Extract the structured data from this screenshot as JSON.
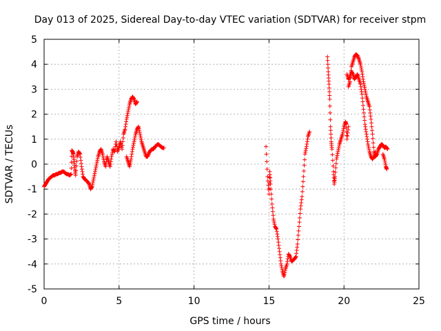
{
  "chart_data": {
    "type": "scatter",
    "title": "Day 013 of 2025, Sidereal Day-to-day VTEC variation (SDTVAR) for receiver stpm",
    "xlabel": "GPS time / hours",
    "ylabel": "SDTVAR / TECUs",
    "xlim": [
      0,
      25
    ],
    "ylim": [
      -5,
      5
    ],
    "xticks": [
      0,
      5,
      10,
      15,
      20,
      25
    ],
    "xtick_labels": [
      "0",
      "5",
      "10",
      "15",
      "20",
      "25"
    ],
    "yticks": [
      -5,
      -4,
      -3,
      -2,
      -1,
      0,
      1,
      2,
      3,
      4,
      5
    ],
    "ytick_labels": [
      "-5",
      "-4",
      "-3",
      "-2",
      "-1",
      "0",
      "1",
      "2",
      "3",
      "4",
      "5"
    ],
    "grid": true,
    "marker": "plus",
    "color": "#ff0000",
    "series": [
      {
        "segments": [
          [
            [
              0.0,
              -0.9
            ],
            [
              0.1,
              -0.8
            ],
            [
              0.2,
              -0.7
            ],
            [
              0.3,
              -0.6
            ],
            [
              0.4,
              -0.55
            ],
            [
              0.5,
              -0.5
            ],
            [
              0.6,
              -0.45
            ],
            [
              0.7,
              -0.45
            ],
            [
              0.8,
              -0.4
            ],
            [
              0.9,
              -0.4
            ],
            [
              1.0,
              -0.35
            ],
            [
              1.1,
              -0.35
            ],
            [
              1.2,
              -0.3
            ],
            [
              1.3,
              -0.3
            ],
            [
              1.4,
              -0.35
            ],
            [
              1.5,
              -0.4
            ],
            [
              1.6,
              -0.4
            ],
            [
              1.7,
              -0.45
            ],
            [
              1.8,
              -0.4
            ],
            [
              1.85,
              0.55
            ],
            [
              1.9,
              0.5
            ],
            [
              1.95,
              0.4
            ],
            [
              2.0,
              0.1
            ],
            [
              2.05,
              -0.2
            ],
            [
              2.1,
              -0.45
            ],
            [
              2.2,
              0.3
            ],
            [
              2.3,
              0.5
            ],
            [
              2.4,
              0.4
            ],
            [
              2.5,
              -0.1
            ],
            [
              2.6,
              -0.5
            ],
            [
              2.7,
              -0.6
            ],
            [
              2.8,
              -0.65
            ],
            [
              2.9,
              -0.7
            ],
            [
              3.0,
              -0.8
            ],
            [
              3.1,
              -1.0
            ],
            [
              3.2,
              -0.9
            ],
            [
              3.3,
              -0.6
            ],
            [
              3.4,
              -0.3
            ],
            [
              3.5,
              0.0
            ],
            [
              3.6,
              0.3
            ],
            [
              3.7,
              0.5
            ],
            [
              3.8,
              0.6
            ],
            [
              3.9,
              0.4
            ],
            [
              4.0,
              0.1
            ],
            [
              4.1,
              -0.1
            ],
            [
              4.2,
              0.3
            ],
            [
              4.3,
              0.1
            ],
            [
              4.4,
              -0.1
            ],
            [
              4.5,
              0.3
            ],
            [
              4.6,
              0.6
            ],
            [
              4.7,
              0.5
            ],
            [
              4.8,
              0.9
            ],
            [
              4.9,
              0.5
            ],
            [
              5.0,
              0.7
            ],
            [
              5.1,
              0.9
            ],
            [
              5.2,
              0.6
            ],
            [
              5.3,
              1.2
            ],
            [
              5.4,
              1.4
            ],
            [
              5.5,
              1.8
            ],
            [
              5.6,
              2.1
            ],
            [
              5.7,
              2.4
            ],
            [
              5.8,
              2.6
            ],
            [
              5.9,
              2.7
            ],
            [
              6.0,
              2.6
            ],
            [
              6.1,
              2.4
            ],
            [
              6.2,
              2.5
            ]
          ],
          [
            [
              5.5,
              0.3
            ],
            [
              5.6,
              0.1
            ],
            [
              5.7,
              -0.1
            ],
            [
              5.8,
              0.2
            ],
            [
              5.9,
              0.6
            ],
            [
              6.0,
              0.9
            ],
            [
              6.1,
              1.2
            ],
            [
              6.2,
              1.4
            ],
            [
              6.3,
              1.5
            ],
            [
              6.4,
              1.2
            ],
            [
              6.5,
              0.9
            ],
            [
              6.6,
              0.7
            ],
            [
              6.7,
              0.5
            ],
            [
              6.8,
              0.3
            ],
            [
              6.9,
              0.3
            ],
            [
              7.0,
              0.45
            ],
            [
              7.1,
              0.55
            ],
            [
              7.2,
              0.6
            ],
            [
              7.3,
              0.6
            ],
            [
              7.4,
              0.7
            ],
            [
              7.5,
              0.75
            ],
            [
              7.6,
              0.8
            ],
            [
              7.7,
              0.75
            ],
            [
              7.8,
              0.7
            ],
            [
              7.9,
              0.65
            ],
            [
              8.0,
              0.65
            ]
          ],
          [
            [
              14.8,
              0.7
            ],
            [
              14.9,
              -0.5
            ],
            [
              15.0,
              -1.2
            ],
            [
              15.05,
              -0.3
            ],
            [
              15.1,
              -0.8
            ],
            [
              15.2,
              -1.6
            ],
            [
              15.3,
              -2.2
            ],
            [
              15.4,
              -2.5
            ],
            [
              15.5,
              -2.6
            ],
            [
              15.6,
              -3.0
            ],
            [
              15.7,
              -3.5
            ],
            [
              15.8,
              -4.0
            ],
            [
              15.9,
              -4.3
            ],
            [
              16.0,
              -4.5
            ],
            [
              16.1,
              -4.2
            ],
            [
              16.2,
              -4.0
            ],
            [
              16.3,
              -3.6
            ],
            [
              16.4,
              -3.7
            ],
            [
              16.5,
              -3.9
            ],
            [
              16.6,
              -3.85
            ],
            [
              16.7,
              -3.8
            ],
            [
              16.8,
              -3.7
            ],
            [
              16.9,
              -3.2
            ],
            [
              17.0,
              -2.5
            ],
            [
              17.1,
              -1.8
            ],
            [
              17.2,
              -1.3
            ],
            [
              17.3,
              -0.5
            ],
            [
              17.4,
              0.4
            ],
            [
              17.5,
              0.7
            ],
            [
              17.6,
              1.1
            ],
            [
              17.7,
              1.3
            ]
          ],
          [
            [
              18.9,
              4.3
            ],
            [
              18.95,
              3.7
            ],
            [
              19.0,
              3.2
            ],
            [
              19.05,
              2.6
            ],
            [
              19.1,
              1.5
            ],
            [
              19.15,
              0.9
            ],
            [
              19.2,
              0.6
            ],
            [
              19.3,
              -0.3
            ],
            [
              19.35,
              -0.8
            ],
            [
              19.4,
              -0.5
            ],
            [
              19.5,
              0.2
            ],
            [
              19.6,
              0.5
            ],
            [
              19.7,
              0.8
            ],
            [
              19.8,
              1.0
            ],
            [
              19.9,
              1.2
            ],
            [
              20.0,
              1.5
            ],
            [
              20.1,
              1.7
            ],
            [
              20.15,
              1.6
            ],
            [
              20.2,
              1.0
            ],
            [
              20.3,
              1.5
            ]
          ],
          [
            [
              20.3,
              3.1
            ],
            [
              20.4,
              3.3
            ],
            [
              20.5,
              3.9
            ],
            [
              20.6,
              4.1
            ],
            [
              20.7,
              4.3
            ],
            [
              20.8,
              4.4
            ],
            [
              20.9,
              4.35
            ],
            [
              21.0,
              4.2
            ],
            [
              21.1,
              4.0
            ],
            [
              21.2,
              3.7
            ],
            [
              21.3,
              3.3
            ],
            [
              21.4,
              3.0
            ],
            [
              21.5,
              2.7
            ],
            [
              21.6,
              2.5
            ],
            [
              21.7,
              2.3
            ],
            [
              21.8,
              1.8
            ],
            [
              21.9,
              1.2
            ],
            [
              22.0,
              0.5
            ],
            [
              22.1,
              0.3
            ],
            [
              22.2,
              0.4
            ],
            [
              22.3,
              0.6
            ],
            [
              22.4,
              0.7
            ],
            [
              22.5,
              0.8
            ],
            [
              22.6,
              0.75
            ],
            [
              22.7,
              0.65
            ],
            [
              22.8,
              0.7
            ],
            [
              22.9,
              0.6
            ]
          ],
          [
            [
              20.2,
              3.6
            ],
            [
              20.3,
              3.4
            ],
            [
              20.4,
              3.5
            ],
            [
              20.5,
              3.7
            ],
            [
              20.6,
              3.6
            ],
            [
              20.7,
              3.4
            ],
            [
              20.8,
              3.5
            ],
            [
              20.9,
              3.6
            ],
            [
              21.0,
              3.4
            ],
            [
              21.1,
              3.2
            ],
            [
              21.2,
              2.8
            ],
            [
              21.3,
              2.2
            ],
            [
              21.4,
              1.6
            ],
            [
              21.5,
              1.2
            ],
            [
              21.6,
              0.8
            ],
            [
              21.7,
              0.5
            ],
            [
              21.8,
              0.3
            ],
            [
              21.9,
              0.2
            ],
            [
              22.0,
              0.3
            ],
            [
              22.1,
              0.5
            ]
          ],
          [
            [
              22.6,
              0.4
            ],
            [
              22.7,
              0.2
            ],
            [
              22.8,
              -0.1
            ],
            [
              22.85,
              -0.2
            ]
          ]
        ]
      }
    ]
  }
}
